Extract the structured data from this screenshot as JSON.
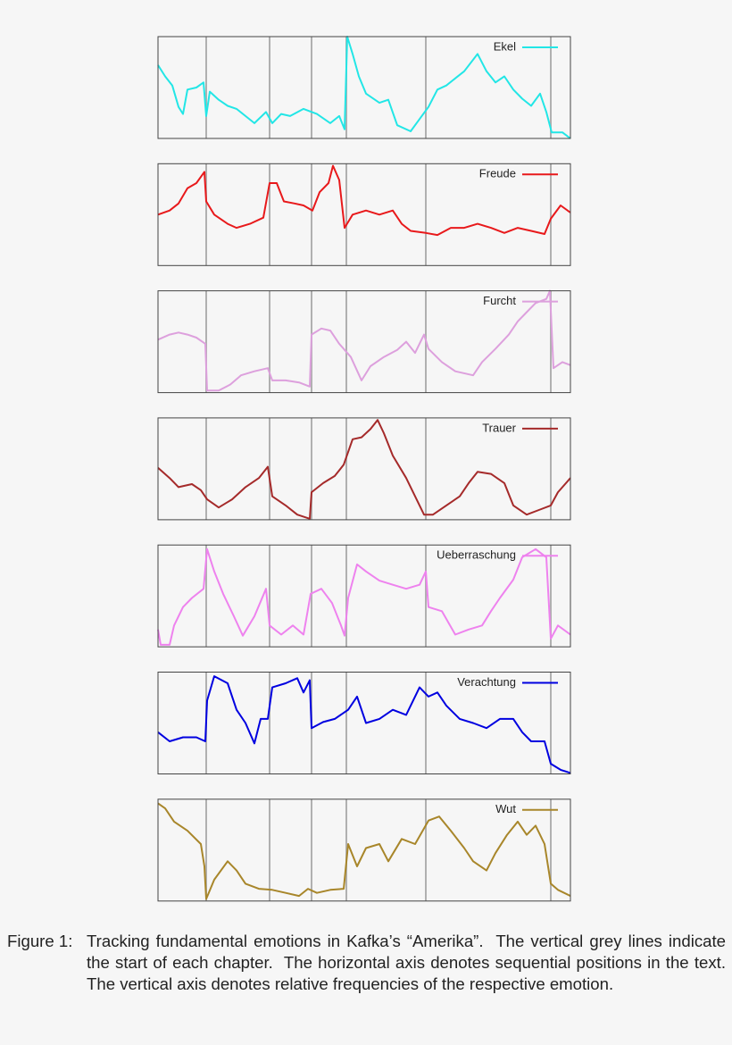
{
  "chart_data": [
    {
      "type": "line",
      "x": [
        0,
        8,
        16,
        23,
        28,
        33,
        43,
        51,
        54,
        58,
        68,
        78,
        88,
        98,
        108,
        121,
        128,
        138,
        148,
        163,
        178,
        193,
        203,
        209,
        212,
        218,
        225,
        233,
        248,
        258,
        268,
        283,
        293,
        303,
        313,
        323,
        333,
        343,
        358,
        368,
        378,
        388,
        398,
        408,
        418,
        428,
        435,
        441,
        453,
        462
      ],
      "series": [
        {
          "name": "Ekel",
          "color": "#22e6e6",
          "values": [
            0.72,
            0.61,
            0.52,
            0.31,
            0.24,
            0.48,
            0.5,
            0.55,
            0.22,
            0.46,
            0.38,
            0.32,
            0.29,
            0.22,
            0.15,
            0.26,
            0.15,
            0.24,
            0.22,
            0.29,
            0.24,
            0.15,
            0.22,
            0.09,
            1.0,
            0.83,
            0.61,
            0.44,
            0.35,
            0.38,
            0.13,
            0.07,
            0.19,
            0.31,
            0.48,
            0.52,
            0.59,
            0.66,
            0.83,
            0.66,
            0.55,
            0.61,
            0.48,
            0.39,
            0.32,
            0.44,
            0.26,
            0.06,
            0.06,
            0
          ]
        }
      ],
      "xlim": [
        0,
        462
      ],
      "ylim": [
        0,
        1
      ],
      "vlines": [
        54,
        125,
        172,
        211,
        300,
        440
      ],
      "legend": "upper right"
    },
    {
      "type": "line",
      "x": [
        0,
        13,
        23,
        33,
        43,
        52,
        54,
        63,
        78,
        88,
        103,
        118,
        125,
        133,
        141,
        153,
        163,
        173,
        181,
        191,
        196,
        203,
        209,
        218,
        233,
        248,
        263,
        273,
        283,
        300,
        313,
        328,
        343,
        358,
        373,
        388,
        403,
        418,
        433,
        440,
        451,
        462
      ],
      "series": [
        {
          "name": "Freude",
          "color": "#e8191b",
          "values": [
            0.5,
            0.54,
            0.61,
            0.76,
            0.81,
            0.92,
            0.63,
            0.5,
            0.41,
            0.37,
            0.41,
            0.47,
            0.81,
            0.81,
            0.63,
            0.61,
            0.59,
            0.54,
            0.72,
            0.81,
            0.98,
            0.84,
            0.37,
            0.5,
            0.54,
            0.5,
            0.54,
            0.41,
            0.34,
            0.32,
            0.3,
            0.37,
            0.37,
            0.41,
            0.37,
            0.32,
            0.37,
            0.34,
            0.31,
            0.46,
            0.59,
            0.52
          ]
        }
      ],
      "xlim": [
        0,
        462
      ],
      "ylim": [
        0,
        1
      ],
      "vlines": [
        54,
        125,
        172,
        211,
        300,
        440
      ],
      "legend": "upper right"
    },
    {
      "type": "line",
      "x": [
        0,
        13,
        23,
        33,
        43,
        53,
        55,
        68,
        81,
        93,
        108,
        123,
        128,
        143,
        158,
        170,
        172,
        183,
        193,
        203,
        216,
        228,
        238,
        253,
        268,
        278,
        288,
        298,
        303,
        318,
        333,
        353,
        363,
        378,
        393,
        403,
        413,
        423,
        435,
        439,
        443,
        453,
        462
      ],
      "series": [
        {
          "name": "Furcht",
          "color": "#dda0dd",
          "values": [
            0.52,
            0.57,
            0.59,
            0.57,
            0.54,
            0.48,
            0.02,
            0.02,
            0.08,
            0.17,
            0.21,
            0.24,
            0.12,
            0.12,
            0.1,
            0.06,
            0.57,
            0.63,
            0.61,
            0.48,
            0.35,
            0.12,
            0.26,
            0.35,
            0.42,
            0.5,
            0.39,
            0.57,
            0.43,
            0.3,
            0.21,
            0.17,
            0.3,
            0.43,
            0.57,
            0.7,
            0.79,
            0.88,
            0.92,
            1.0,
            0.24,
            0.3,
            0.27
          ]
        }
      ],
      "xlim": [
        0,
        462
      ],
      "ylim": [
        0,
        1
      ],
      "vlines": [
        54,
        125,
        172,
        211,
        300,
        440
      ],
      "legend": "upper right"
    },
    {
      "type": "line",
      "x": [
        0,
        13,
        23,
        38,
        48,
        55,
        68,
        83,
        98,
        113,
        123,
        128,
        143,
        156,
        170,
        172,
        185,
        198,
        208,
        218,
        228,
        238,
        246,
        253,
        263,
        278,
        288,
        298,
        308,
        323,
        338,
        348,
        358,
        373,
        388,
        398,
        413,
        428,
        440,
        448,
        462
      ],
      "series": [
        {
          "name": "Trauer",
          "color": "#a52a2a",
          "values": [
            0.51,
            0.41,
            0.32,
            0.35,
            0.29,
            0.2,
            0.12,
            0.2,
            0.32,
            0.41,
            0.52,
            0.23,
            0.14,
            0.05,
            0.01,
            0.27,
            0.36,
            0.43,
            0.54,
            0.79,
            0.81,
            0.89,
            0.98,
            0.85,
            0.63,
            0.41,
            0.23,
            0.05,
            0.05,
            0.14,
            0.23,
            0.36,
            0.47,
            0.45,
            0.36,
            0.14,
            0.05,
            0.1,
            0.14,
            0.27,
            0.41
          ]
        }
      ],
      "xlim": [
        0,
        462
      ],
      "ylim": [
        0,
        1
      ],
      "vlines": [
        54,
        125,
        172,
        211,
        300,
        440
      ],
      "legend": "upper right"
    },
    {
      "type": "line",
      "x": [
        0,
        3,
        13,
        18,
        28,
        38,
        51,
        55,
        63,
        73,
        85,
        95,
        108,
        121,
        125,
        138,
        151,
        163,
        171,
        183,
        195,
        205,
        209,
        213,
        223,
        233,
        248,
        263,
        278,
        293,
        300,
        303,
        318,
        333,
        348,
        363,
        373,
        383,
        398,
        408,
        423,
        435,
        440,
        448,
        462
      ],
      "series": [
        {
          "name": "Ueberraschung",
          "color": "#ee82ee",
          "values": [
            0.17,
            0.02,
            0.02,
            0.21,
            0.39,
            0.48,
            0.57,
            0.96,
            0.74,
            0.52,
            0.3,
            0.11,
            0.3,
            0.57,
            0.21,
            0.12,
            0.21,
            0.12,
            0.52,
            0.57,
            0.43,
            0.21,
            0.11,
            0.48,
            0.81,
            0.74,
            0.65,
            0.61,
            0.57,
            0.61,
            0.74,
            0.39,
            0.35,
            0.12,
            0.17,
            0.21,
            0.35,
            0.48,
            0.66,
            0.88,
            0.96,
            0.88,
            0.08,
            0.21,
            0.12
          ]
        }
      ],
      "xlim": [
        0,
        462
      ],
      "ylim": [
        0,
        1
      ],
      "vlines": [
        54,
        125,
        172,
        211,
        300,
        440
      ],
      "legend": "upper right"
    },
    {
      "type": "line",
      "x": [
        0,
        13,
        28,
        43,
        53,
        55,
        63,
        78,
        88,
        98,
        108,
        115,
        123,
        128,
        143,
        156,
        163,
        170,
        172,
        185,
        198,
        213,
        223,
        233,
        248,
        263,
        278,
        293,
        303,
        313,
        323,
        338,
        353,
        368,
        383,
        398,
        408,
        418,
        433,
        440,
        451,
        462
      ],
      "series": [
        {
          "name": "Verachtung",
          "color": "#0000e0",
          "values": [
            0.41,
            0.32,
            0.36,
            0.36,
            0.32,
            0.72,
            0.96,
            0.89,
            0.63,
            0.5,
            0.3,
            0.54,
            0.54,
            0.85,
            0.89,
            0.94,
            0.8,
            0.92,
            0.45,
            0.51,
            0.54,
            0.63,
            0.76,
            0.5,
            0.54,
            0.63,
            0.58,
            0.85,
            0.76,
            0.8,
            0.67,
            0.54,
            0.5,
            0.45,
            0.54,
            0.54,
            0.41,
            0.32,
            0.32,
            0.1,
            0.04,
            0.01
          ]
        }
      ],
      "xlim": [
        0,
        462
      ],
      "ylim": [
        0,
        1
      ],
      "vlines": [
        54,
        125,
        172,
        211,
        300,
        440
      ],
      "legend": "upper right"
    },
    {
      "type": "line",
      "x": [
        0,
        8,
        18,
        33,
        48,
        52,
        54,
        63,
        78,
        88,
        98,
        113,
        128,
        143,
        158,
        168,
        178,
        193,
        208,
        213,
        223,
        233,
        248,
        258,
        273,
        288,
        303,
        315,
        328,
        343,
        353,
        368,
        378,
        391,
        403,
        413,
        423,
        433,
        440,
        448,
        462
      ],
      "series": [
        {
          "name": "Wut",
          "color": "#a8862a",
          "values": [
            0.96,
            0.91,
            0.78,
            0.69,
            0.56,
            0.34,
            0.02,
            0.21,
            0.39,
            0.3,
            0.17,
            0.12,
            0.11,
            0.08,
            0.05,
            0.12,
            0.08,
            0.11,
            0.12,
            0.56,
            0.34,
            0.52,
            0.56,
            0.39,
            0.61,
            0.56,
            0.79,
            0.83,
            0.69,
            0.52,
            0.39,
            0.3,
            0.47,
            0.65,
            0.78,
            0.65,
            0.74,
            0.56,
            0.17,
            0.11,
            0.05
          ]
        }
      ],
      "xlim": [
        0,
        462
      ],
      "ylim": [
        0,
        1
      ],
      "vlines": [
        54,
        125,
        172,
        211,
        300,
        440
      ],
      "legend": "upper right"
    }
  ],
  "caption": {
    "label": "Figure 1:",
    "text": "Tracking fundamental emotions in Kafka’s “Amerika”.  The vertical grey lines indicate the start of each chapter.  The horizontal axis denotes sequential positions in the text.  The vertical axis denotes relative frequencies of the respective emotion."
  }
}
